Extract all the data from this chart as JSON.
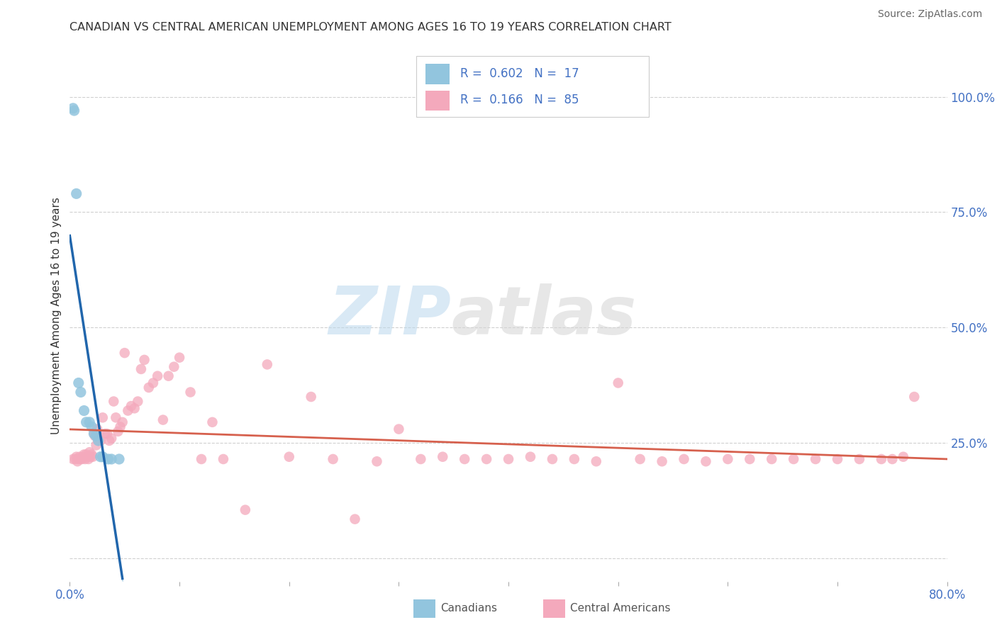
{
  "title": "CANADIAN VS CENTRAL AMERICAN UNEMPLOYMENT AMONG AGES 16 TO 19 YEARS CORRELATION CHART",
  "source": "Source: ZipAtlas.com",
  "ylabel": "Unemployment Among Ages 16 to 19 years",
  "xlim": [
    0,
    0.8
  ],
  "ylim": [
    -0.05,
    1.1
  ],
  "xticks": [
    0.0,
    0.1,
    0.2,
    0.3,
    0.4,
    0.5,
    0.6,
    0.7,
    0.8
  ],
  "xticklabels": [
    "0.0%",
    "",
    "",
    "",
    "",
    "",
    "",
    "",
    "80.0%"
  ],
  "yticks_right": [
    0.0,
    0.25,
    0.5,
    0.75,
    1.0
  ],
  "yticklabels_right": [
    "",
    "25.0%",
    "50.0%",
    "75.0%",
    "100.0%"
  ],
  "canadian_color": "#92c5de",
  "central_american_color": "#f4a9bc",
  "canadian_line_color": "#2166ac",
  "central_american_line_color": "#d6604d",
  "canadian_trendline_dashed_color": "#b2d4e8",
  "r_canadian": 0.602,
  "n_canadian": 17,
  "r_central": 0.166,
  "n_central": 85,
  "canadians_x": [
    0.003,
    0.004,
    0.006,
    0.008,
    0.01,
    0.013,
    0.015,
    0.018,
    0.02,
    0.022,
    0.024,
    0.026,
    0.028,
    0.03,
    0.035,
    0.038,
    0.045
  ],
  "canadians_y": [
    0.975,
    0.97,
    0.79,
    0.38,
    0.36,
    0.32,
    0.295,
    0.295,
    0.285,
    0.27,
    0.265,
    0.255,
    0.22,
    0.22,
    0.215,
    0.215,
    0.215
  ],
  "central_americans_x": [
    0.003,
    0.005,
    0.006,
    0.007,
    0.008,
    0.009,
    0.01,
    0.011,
    0.012,
    0.013,
    0.014,
    0.015,
    0.016,
    0.017,
    0.018,
    0.019,
    0.02,
    0.021,
    0.022,
    0.023,
    0.024,
    0.025,
    0.026,
    0.028,
    0.03,
    0.032,
    0.034,
    0.036,
    0.038,
    0.04,
    0.042,
    0.044,
    0.046,
    0.048,
    0.05,
    0.053,
    0.056,
    0.059,
    0.062,
    0.065,
    0.068,
    0.072,
    0.076,
    0.08,
    0.085,
    0.09,
    0.095,
    0.1,
    0.11,
    0.12,
    0.13,
    0.14,
    0.16,
    0.18,
    0.2,
    0.22,
    0.24,
    0.26,
    0.28,
    0.3,
    0.32,
    0.34,
    0.36,
    0.38,
    0.4,
    0.42,
    0.44,
    0.46,
    0.48,
    0.5,
    0.52,
    0.54,
    0.56,
    0.58,
    0.6,
    0.62,
    0.64,
    0.66,
    0.68,
    0.7,
    0.72,
    0.74,
    0.75,
    0.76,
    0.77
  ],
  "central_americans_y": [
    0.215,
    0.215,
    0.22,
    0.21,
    0.215,
    0.22,
    0.215,
    0.215,
    0.22,
    0.225,
    0.215,
    0.225,
    0.22,
    0.215,
    0.23,
    0.22,
    0.225,
    0.22,
    0.27,
    0.265,
    0.245,
    0.28,
    0.255,
    0.255,
    0.305,
    0.27,
    0.27,
    0.255,
    0.26,
    0.34,
    0.305,
    0.275,
    0.285,
    0.295,
    0.445,
    0.32,
    0.33,
    0.325,
    0.34,
    0.41,
    0.43,
    0.37,
    0.38,
    0.395,
    0.3,
    0.395,
    0.415,
    0.435,
    0.36,
    0.215,
    0.295,
    0.215,
    0.105,
    0.42,
    0.22,
    0.35,
    0.215,
    0.085,
    0.21,
    0.28,
    0.215,
    0.22,
    0.215,
    0.215,
    0.215,
    0.22,
    0.215,
    0.215,
    0.21,
    0.38,
    0.215,
    0.21,
    0.215,
    0.21,
    0.215,
    0.215,
    0.215,
    0.215,
    0.215,
    0.215,
    0.215,
    0.215,
    0.215,
    0.22,
    0.35
  ],
  "watermark_zip": "ZIP",
  "watermark_atlas": "atlas",
  "background_color": "#ffffff",
  "grid_color": "#d0d0d0"
}
